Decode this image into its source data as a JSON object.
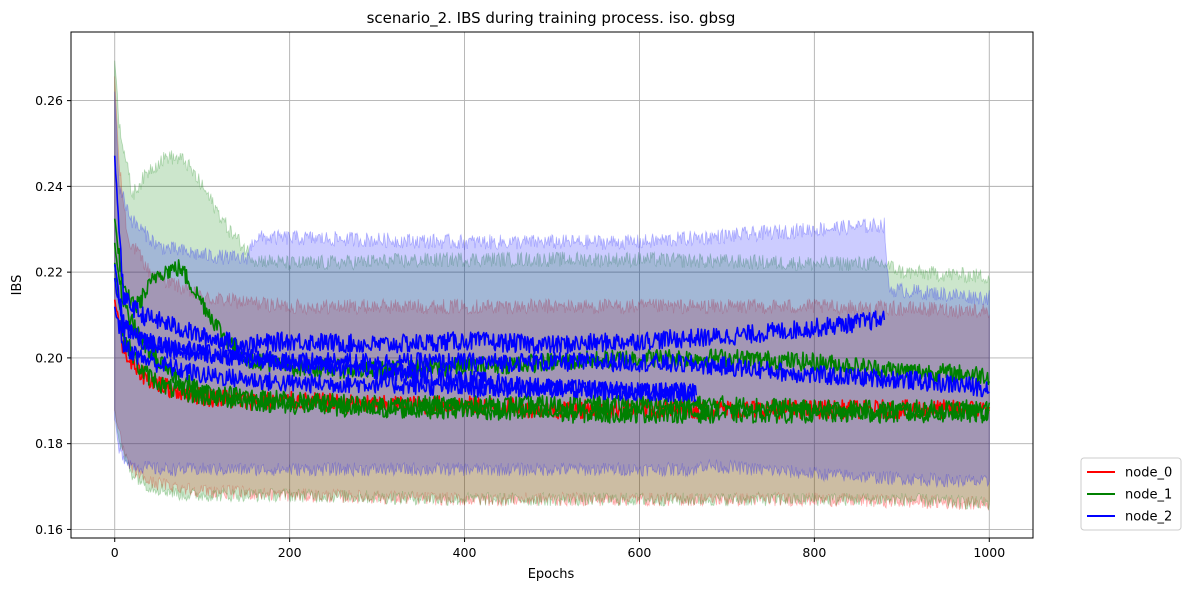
{
  "chart_data": {
    "type": "line",
    "title": "scenario_2. IBS during training process. iso. gbsg",
    "xlabel": "Epochs",
    "ylabel": "IBS",
    "xlim": [
      -50,
      1050
    ],
    "ylim": [
      0.158,
      0.276
    ],
    "xticks": [
      0,
      200,
      400,
      600,
      800,
      1000
    ],
    "yticks": [
      0.16,
      0.18,
      0.2,
      0.22,
      0.24,
      0.26
    ],
    "ytick_labels": [
      "0.16",
      "0.18",
      "0.20",
      "0.22",
      "0.24",
      "0.26"
    ],
    "grid": true,
    "legend_position": "outside-bottom-right",
    "series": [
      {
        "name": "node_0",
        "color": "#ff0000",
        "runs": [
          {
            "x": [
              0,
              10,
              20,
              40,
              60,
              100,
              150,
              200,
              300,
              400,
              500,
              600,
              700,
              800,
              900,
              1000
            ],
            "y": [
              0.214,
              0.202,
              0.198,
              0.195,
              0.193,
              0.191,
              0.19,
              0.19,
              0.189,
              0.189,
              0.188,
              0.188,
              0.188,
              0.188,
              0.188,
              0.188
            ]
          }
        ],
        "band": {
          "x": [
            0,
            5,
            15,
            40,
            100,
            200,
            400,
            600,
            800,
            1000
          ],
          "upper": [
            0.265,
            0.245,
            0.228,
            0.22,
            0.214,
            0.212,
            0.212,
            0.212,
            0.212,
            0.211
          ],
          "lower": [
            0.188,
            0.182,
            0.175,
            0.171,
            0.169,
            0.168,
            0.167,
            0.167,
            0.167,
            0.166
          ]
        }
      },
      {
        "name": "node_1",
        "color": "#008000",
        "runs": [
          {
            "x": [
              0,
              10,
              25,
              50,
              75,
              100,
              125,
              150,
              200,
              300,
              400,
              500,
              600,
              700,
              800,
              900,
              1000
            ],
            "y": [
              0.232,
              0.215,
              0.212,
              0.22,
              0.221,
              0.213,
              0.205,
              0.2,
              0.198,
              0.197,
              0.198,
              0.199,
              0.2,
              0.2,
              0.199,
              0.197,
              0.196
            ]
          },
          {
            "x": [
              0,
              10,
              30,
              60,
              100,
              200,
              300,
              400,
              500,
              600,
              700,
              800,
              900,
              1000
            ],
            "y": [
              0.222,
              0.205,
              0.197,
              0.193,
              0.191,
              0.189,
              0.188,
              0.188,
              0.187,
              0.187,
              0.187,
              0.187,
              0.187,
              0.187
            ]
          },
          {
            "x": [
              0,
              10,
              30,
              60,
              100,
              200,
              300,
              400,
              500,
              600,
              700,
              800,
              900,
              1000
            ],
            "y": [
              0.226,
              0.212,
              0.204,
              0.197,
              0.192,
              0.19,
              0.189,
              0.189,
              0.189,
              0.189,
              0.189,
              0.188,
              0.188,
              0.188
            ]
          }
        ],
        "band": {
          "x": [
            0,
            5,
            20,
            40,
            60,
            80,
            100,
            130,
            160,
            200,
            400,
            600,
            800,
            880,
            900,
            1000
          ],
          "upper": [
            0.27,
            0.255,
            0.238,
            0.244,
            0.247,
            0.246,
            0.24,
            0.23,
            0.223,
            0.222,
            0.223,
            0.223,
            0.222,
            0.222,
            0.22,
            0.219
          ],
          "lower": [
            0.188,
            0.18,
            0.173,
            0.17,
            0.169,
            0.168,
            0.168,
            0.168,
            0.168,
            0.168,
            0.167,
            0.167,
            0.167,
            0.167,
            0.167,
            0.166
          ]
        }
      },
      {
        "name": "node_2",
        "color": "#0000ff",
        "runs": [
          {
            "x": [
              0,
              10,
              30,
              60,
              100,
              150,
              200,
              300,
              400,
              500,
              600,
              700,
              800,
              880
            ],
            "y": [
              0.247,
              0.214,
              0.21,
              0.208,
              0.205,
              0.203,
              0.204,
              0.203,
              0.204,
              0.203,
              0.204,
              0.205,
              0.207,
              0.209
            ]
          },
          {
            "x": [
              0,
              10,
              30,
              60,
              100,
              150,
              200,
              300,
              400,
              500,
              600,
              665
            ],
            "y": [
              0.212,
              0.203,
              0.2,
              0.198,
              0.196,
              0.195,
              0.194,
              0.194,
              0.193,
              0.193,
              0.192,
              0.192
            ]
          },
          {
            "x": [
              0,
              10,
              30,
              60,
              100,
              150,
              200,
              300,
              400,
              500,
              600,
              700,
              800,
              900,
              1000
            ],
            "y": [
              0.218,
              0.207,
              0.205,
              0.203,
              0.201,
              0.2,
              0.199,
              0.199,
              0.199,
              0.199,
              0.199,
              0.198,
              0.196,
              0.195,
              0.193
            ]
          },
          {
            "x": [
              0,
              10,
              30,
              60,
              100,
              200,
              300,
              400,
              450,
              500,
              600,
              665
            ],
            "y": [
              0.222,
              0.208,
              0.204,
              0.202,
              0.201,
              0.199,
              0.197,
              0.195,
              0.194,
              0.193,
              0.192,
              0.192
            ]
          }
        ],
        "band": {
          "x": [
            0,
            5,
            20,
            50,
            100,
            150,
            160,
            200,
            400,
            600,
            665,
            670,
            800,
            880,
            885,
            1000
          ],
          "upper": [
            0.262,
            0.24,
            0.232,
            0.226,
            0.224,
            0.223,
            0.228,
            0.228,
            0.227,
            0.227,
            0.228,
            0.228,
            0.23,
            0.231,
            0.216,
            0.214
          ],
          "lower": [
            0.186,
            0.178,
            0.175,
            0.174,
            0.174,
            0.174,
            0.174,
            0.174,
            0.174,
            0.174,
            0.174,
            0.175,
            0.173,
            0.172,
            0.172,
            0.171
          ]
        }
      }
    ]
  }
}
